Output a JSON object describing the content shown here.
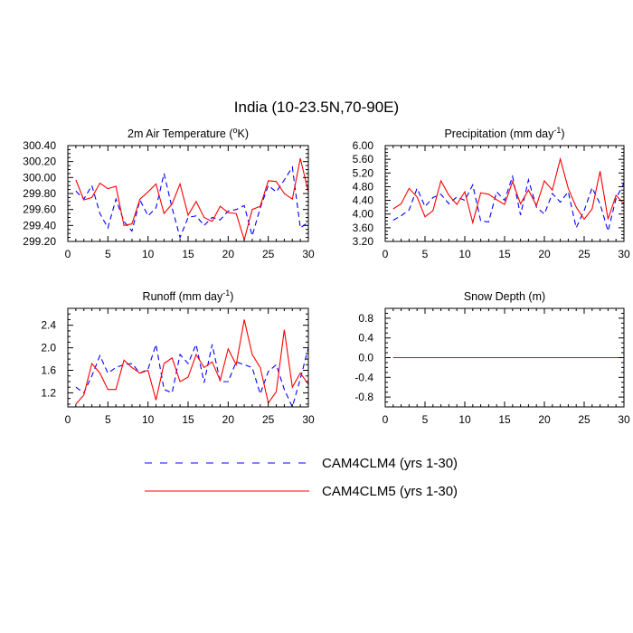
{
  "figure": {
    "title": "India (10-23.5N,70-90E)"
  },
  "legend": [
    {
      "label": "CAM4CLM4 (yrs 1-30)",
      "color": "#0000ff",
      "style": "dashed"
    },
    {
      "label": "CAM4CLM5 (yrs 1-30)",
      "color": "#ff0000",
      "style": "solid"
    }
  ],
  "chart_data": [
    {
      "type": "line",
      "title": "2m Air Temperature (°K)",
      "title_main": "2m Air Temperature (",
      "title_sup": "o",
      "title_end": "K)",
      "xlim": [
        0,
        30
      ],
      "ylim": [
        299.2,
        300.4
      ],
      "xticks": [
        0,
        5,
        10,
        15,
        20,
        25,
        30
      ],
      "yticks": [
        299.2,
        299.4,
        299.6,
        299.8,
        300.0,
        300.2,
        300.4
      ],
      "ytick_labels": [
        "299.20",
        "299.40",
        "299.60",
        "299.80",
        "300.00",
        "300.20",
        "300.40"
      ],
      "x": [
        1,
        2,
        3,
        4,
        5,
        6,
        7,
        8,
        9,
        10,
        11,
        12,
        13,
        14,
        15,
        16,
        17,
        18,
        19,
        20,
        21,
        22,
        23,
        24,
        25,
        26,
        27,
        28,
        29,
        30
      ],
      "series": [
        {
          "name": "CAM4CLM4 (yrs 1-30)",
          "color": "#0000ff",
          "style": "dashed",
          "values": [
            299.83,
            299.73,
            299.9,
            299.55,
            299.37,
            299.73,
            299.45,
            299.33,
            299.72,
            299.52,
            299.62,
            300.05,
            299.62,
            299.25,
            299.5,
            299.52,
            299.4,
            299.5,
            299.47,
            299.58,
            299.6,
            299.65,
            299.27,
            299.62,
            299.9,
            299.82,
            299.97,
            300.13,
            299.37,
            299.44
          ]
        },
        {
          "name": "CAM4CLM5 (yrs 1-30)",
          "color": "#ff0000",
          "style": "solid",
          "values": [
            299.97,
            299.72,
            299.75,
            299.93,
            299.86,
            299.89,
            299.4,
            299.42,
            299.73,
            299.82,
            299.92,
            299.55,
            299.67,
            299.92,
            299.53,
            299.7,
            299.5,
            299.45,
            299.64,
            299.56,
            299.55,
            299.22,
            299.6,
            299.64,
            299.96,
            299.95,
            299.8,
            299.73,
            300.24,
            299.82
          ]
        }
      ]
    },
    {
      "type": "line",
      "title": "Precipitation (mm day-1)",
      "title_main": "Precipitation (mm day",
      "title_sup": "-1",
      "title_end": ")",
      "xlim": [
        0,
        30
      ],
      "ylim": [
        3.2,
        6.0
      ],
      "xticks": [
        0,
        5,
        10,
        15,
        20,
        25,
        30
      ],
      "yticks": [
        3.2,
        3.6,
        4.0,
        4.4,
        4.8,
        5.2,
        5.6,
        6.0
      ],
      "ytick_labels": [
        "3.20",
        "3.60",
        "4.00",
        "4.40",
        "4.80",
        "5.20",
        "5.60",
        "6.00"
      ],
      "x": [
        1,
        2,
        3,
        4,
        5,
        6,
        7,
        8,
        9,
        10,
        11,
        12,
        13,
        14,
        15,
        16,
        17,
        18,
        19,
        20,
        21,
        22,
        23,
        24,
        25,
        26,
        27,
        28,
        29,
        30
      ],
      "series": [
        {
          "name": "CAM4CLM4 (yrs 1-30)",
          "color": "#0000ff",
          "style": "dashed",
          "values": [
            3.82,
            3.95,
            4.12,
            4.75,
            4.22,
            4.48,
            4.58,
            4.3,
            4.5,
            4.4,
            4.85,
            3.8,
            3.77,
            4.65,
            4.4,
            5.1,
            3.97,
            5.0,
            4.2,
            4.0,
            4.6,
            4.35,
            4.65,
            3.6,
            4.1,
            4.77,
            4.3,
            3.5,
            4.45,
            4.9
          ]
        },
        {
          "name": "CAM4CLM5 (yrs 1-30)",
          "color": "#ff0000",
          "style": "solid",
          "values": [
            4.15,
            4.3,
            4.75,
            4.5,
            3.92,
            4.1,
            4.97,
            4.55,
            4.28,
            4.65,
            3.75,
            4.62,
            4.58,
            4.42,
            4.28,
            4.95,
            4.3,
            4.7,
            4.25,
            4.97,
            4.7,
            5.61,
            4.75,
            4.2,
            3.85,
            4.15,
            5.25,
            3.85,
            4.55,
            4.3
          ]
        }
      ]
    },
    {
      "type": "line",
      "title": "Runoff (mm day-1)",
      "title_main": "Runoff (mm day",
      "title_sup": "-1",
      "title_end": ")",
      "xlim": [
        0,
        30
      ],
      "ylim": [
        0.95,
        2.7
      ],
      "xticks": [
        0,
        5,
        10,
        15,
        20,
        25,
        30
      ],
      "yticks": [
        1.2,
        1.6,
        2.0,
        2.4
      ],
      "ytick_labels": [
        "1.2",
        "1.6",
        "2.0",
        "2.4"
      ],
      "x": [
        1,
        2,
        3,
        4,
        5,
        6,
        7,
        8,
        9,
        10,
        11,
        12,
        13,
        14,
        15,
        16,
        17,
        18,
        19,
        20,
        21,
        22,
        23,
        24,
        25,
        26,
        27,
        28,
        29,
        30
      ],
      "series": [
        {
          "name": "CAM4CLM4 (yrs 1-30)",
          "color": "#0000ff",
          "style": "dashed",
          "values": [
            1.3,
            1.2,
            1.5,
            1.86,
            1.55,
            1.65,
            1.7,
            1.72,
            1.55,
            1.62,
            2.06,
            1.26,
            1.2,
            1.88,
            1.72,
            2.06,
            1.38,
            2.06,
            1.4,
            1.4,
            1.75,
            1.7,
            1.65,
            1.18,
            1.58,
            1.7,
            1.26,
            0.95,
            1.45,
            2.0
          ]
        },
        {
          "name": "CAM4CLM5 (yrs 1-30)",
          "color": "#ff0000",
          "style": "solid",
          "values": [
            1.0,
            1.16,
            1.72,
            1.55,
            1.26,
            1.26,
            1.78,
            1.65,
            1.55,
            1.6,
            1.07,
            1.72,
            1.82,
            1.4,
            1.48,
            1.88,
            1.65,
            1.75,
            1.42,
            1.98,
            1.7,
            2.5,
            1.88,
            1.65,
            1.02,
            1.22,
            2.32,
            1.3,
            1.55,
            1.35
          ]
        }
      ]
    },
    {
      "type": "line",
      "title": "Snow Depth (m)",
      "title_main": "Snow Depth (m)",
      "title_sup": "",
      "title_end": "",
      "xlim": [
        0,
        30
      ],
      "ylim": [
        -1.0,
        1.0
      ],
      "xticks": [
        0,
        5,
        10,
        15,
        20,
        25,
        30
      ],
      "yticks": [
        -0.8,
        -0.4,
        0.0,
        0.4,
        0.8
      ],
      "ytick_labels": [
        "-0.8",
        "-0.4",
        "0.0",
        "0.4",
        "0.8"
      ],
      "x": [
        1,
        2,
        3,
        4,
        5,
        6,
        7,
        8,
        9,
        10,
        11,
        12,
        13,
        14,
        15,
        16,
        17,
        18,
        19,
        20,
        21,
        22,
        23,
        24,
        25,
        26,
        27,
        28,
        29,
        30
      ],
      "series": [
        {
          "name": "CAM4CLM4 (yrs 1-30)",
          "color": "#0000ff",
          "style": "dashed",
          "values": [
            0,
            0,
            0,
            0,
            0,
            0,
            0,
            0,
            0,
            0,
            0,
            0,
            0,
            0,
            0,
            0,
            0,
            0,
            0,
            0,
            0,
            0,
            0,
            0,
            0,
            0,
            0,
            0,
            0,
            0
          ]
        },
        {
          "name": "CAM4CLM5 (yrs 1-30)",
          "color": "#ff0000",
          "style": "solid",
          "values": [
            0,
            0,
            0,
            0,
            0,
            0,
            0,
            0,
            0,
            0,
            0,
            0,
            0,
            0,
            0,
            0,
            0,
            0,
            0,
            0,
            0,
            0,
            0,
            0,
            0,
            0,
            0,
            0,
            0,
            0
          ]
        }
      ]
    }
  ]
}
